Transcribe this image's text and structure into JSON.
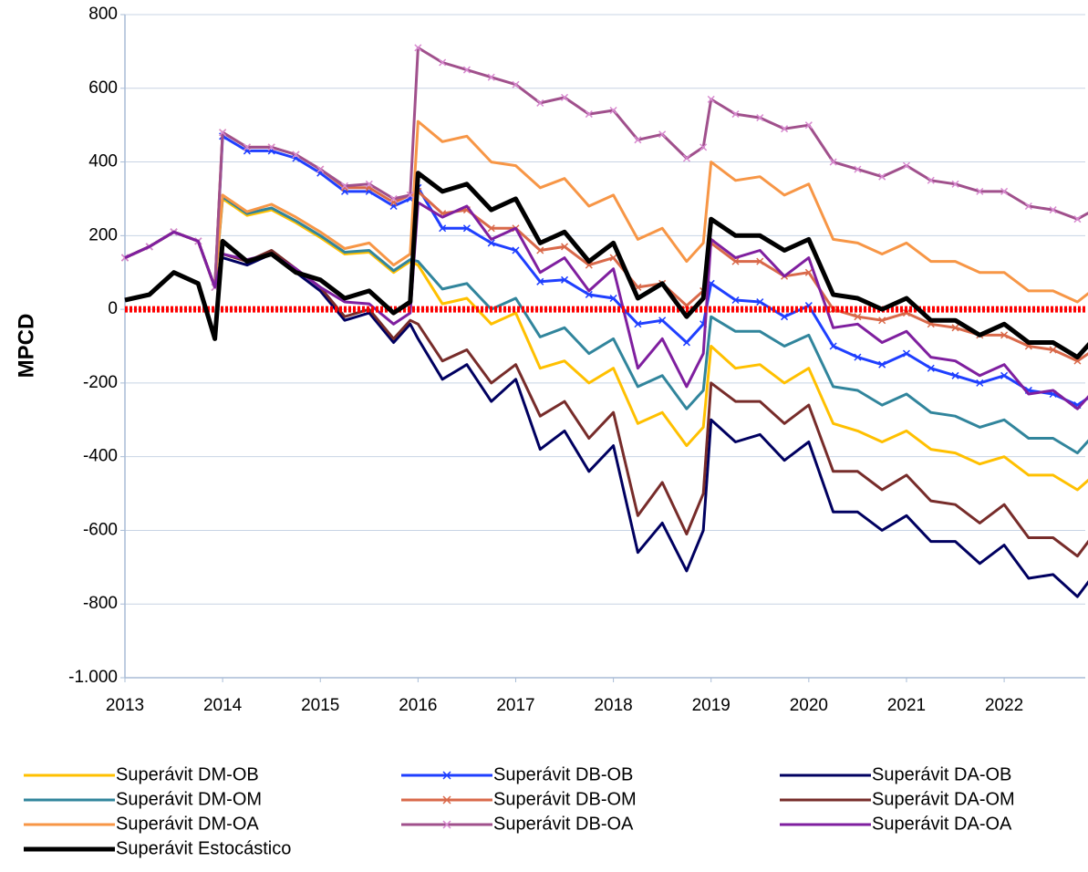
{
  "chart_data": {
    "type": "line",
    "y_label": "MPCD",
    "x": [
      2013,
      2013.25,
      2013.5,
      2013.75,
      2013.92,
      2014,
      2014.25,
      2014.5,
      2014.75,
      2015,
      2015.25,
      2015.5,
      2015.75,
      2015.92,
      2016,
      2016.25,
      2016.5,
      2016.75,
      2017,
      2017.25,
      2017.5,
      2017.75,
      2018,
      2018.25,
      2018.5,
      2018.75,
      2018.92,
      2019,
      2019.25,
      2019.5,
      2019.75,
      2020,
      2020.25,
      2020.5,
      2020.75,
      2021,
      2021.25,
      2021.5,
      2021.75,
      2022,
      2022.25,
      2022.5,
      2022.75,
      2022.92
    ],
    "xlim": [
      2013,
      2022.83
    ],
    "xticks": [
      2013,
      2014,
      2015,
      2016,
      2017,
      2018,
      2019,
      2020,
      2021,
      2022
    ],
    "ylim": [
      -1000,
      800
    ],
    "yticks": [
      {
        "value": -1000,
        "label": "-1.000"
      },
      -800,
      -600,
      -400,
      -200,
      0,
      200,
      400,
      600,
      800
    ],
    "grid": true,
    "legend": "bottom",
    "reference_line": {
      "value": 0,
      "color": "#ff0000"
    },
    "series": [
      {
        "name": "Superávit DM-OB",
        "color": "#ffc000",
        "values": [
          140,
          170,
          210,
          185,
          60,
          300,
          255,
          270,
          235,
          195,
          150,
          155,
          100,
          130,
          120,
          15,
          30,
          -40,
          -10,
          -160,
          -140,
          -200,
          -160,
          -310,
          -280,
          -370,
          -320,
          -100,
          -160,
          -150,
          -200,
          -160,
          -310,
          -330,
          -360,
          -330,
          -380,
          -390,
          -420,
          -400,
          -450,
          -450,
          -490,
          -450
        ]
      },
      {
        "name": "Superávit DB-OB",
        "color": "#1f3fff",
        "marker": "x",
        "values": [
          140,
          170,
          210,
          185,
          60,
          470,
          430,
          430,
          410,
          370,
          320,
          320,
          280,
          300,
          330,
          220,
          220,
          180,
          160,
          75,
          80,
          40,
          30,
          -40,
          -30,
          -90,
          -40,
          70,
          25,
          20,
          -20,
          10,
          -100,
          -130,
          -150,
          -120,
          -160,
          -180,
          -200,
          -180,
          -220,
          -230,
          -260,
          -230
        ]
      },
      {
        "name": "Superávit DA-OB",
        "color": "#000060",
        "values": [
          140,
          170,
          210,
          185,
          60,
          140,
          120,
          150,
          100,
          50,
          -30,
          -10,
          -90,
          -40,
          -80,
          -190,
          -150,
          -250,
          -190,
          -380,
          -330,
          -440,
          -370,
          -660,
          -580,
          -710,
          -600,
          -300,
          -360,
          -340,
          -410,
          -360,
          -550,
          -550,
          -600,
          -560,
          -630,
          -630,
          -690,
          -640,
          -730,
          -720,
          -780,
          -720
        ]
      },
      {
        "name": "Superávit DM-OM",
        "color": "#31859c",
        "values": [
          140,
          170,
          210,
          185,
          60,
          305,
          260,
          275,
          240,
          200,
          155,
          160,
          105,
          135,
          130,
          55,
          70,
          0,
          30,
          -75,
          -50,
          -120,
          -80,
          -210,
          -180,
          -270,
          -220,
          -20,
          -60,
          -60,
          -100,
          -70,
          -210,
          -220,
          -260,
          -230,
          -280,
          -290,
          -320,
          -300,
          -350,
          -350,
          -390,
          -340
        ]
      },
      {
        "name": "Superávit DB-OM",
        "color": "#d9694a",
        "marker": "x",
        "values": [
          140,
          170,
          210,
          185,
          60,
          480,
          440,
          440,
          420,
          380,
          330,
          330,
          290,
          310,
          320,
          260,
          270,
          220,
          220,
          160,
          170,
          120,
          140,
          60,
          70,
          10,
          50,
          180,
          130,
          130,
          90,
          100,
          0,
          -20,
          -30,
          -10,
          -40,
          -50,
          -70,
          -70,
          -100,
          -110,
          -140,
          -110
        ]
      },
      {
        "name": "Superávit DA-OM",
        "color": "#772c2a",
        "values": [
          140,
          170,
          210,
          185,
          60,
          150,
          130,
          160,
          110,
          60,
          -20,
          0,
          -80,
          -30,
          -40,
          -140,
          -110,
          -200,
          -150,
          -290,
          -250,
          -350,
          -280,
          -560,
          -470,
          -610,
          -500,
          -200,
          -250,
          -250,
          -310,
          -260,
          -440,
          -440,
          -490,
          -450,
          -520,
          -530,
          -580,
          -530,
          -620,
          -620,
          -670,
          -610
        ]
      },
      {
        "name": "Superávit DM-OA",
        "color": "#f79646",
        "values": [
          140,
          170,
          210,
          185,
          60,
          310,
          265,
          285,
          250,
          210,
          165,
          180,
          120,
          150,
          510,
          455,
          470,
          400,
          390,
          330,
          355,
          280,
          310,
          190,
          220,
          130,
          180,
          400,
          350,
          360,
          310,
          340,
          190,
          180,
          150,
          180,
          130,
          130,
          100,
          100,
          50,
          50,
          20,
          55
        ]
      },
      {
        "name": "Superávit DB-OA",
        "color": "#a0508c",
        "marker": "x",
        "values": [
          140,
          170,
          210,
          185,
          60,
          480,
          440,
          440,
          420,
          380,
          335,
          340,
          300,
          310,
          710,
          670,
          650,
          630,
          610,
          560,
          575,
          530,
          540,
          460,
          475,
          410,
          440,
          570,
          530,
          520,
          490,
          500,
          400,
          380,
          360,
          390,
          350,
          340,
          320,
          320,
          280,
          270,
          245,
          270
        ]
      },
      {
        "name": "Superávit DA-OA",
        "color": "#7f1f9f",
        "values": [
          140,
          170,
          210,
          185,
          60,
          150,
          135,
          150,
          110,
          60,
          20,
          15,
          -40,
          -10,
          290,
          250,
          280,
          190,
          220,
          100,
          140,
          50,
          110,
          -160,
          -80,
          -210,
          -120,
          190,
          140,
          160,
          90,
          140,
          -50,
          -40,
          -90,
          -60,
          -130,
          -140,
          -180,
          -150,
          -230,
          -220,
          -270,
          -220
        ]
      },
      {
        "name": "Superávit Estocástico",
        "color": "#000000",
        "width": 5,
        "values": [
          25,
          40,
          100,
          70,
          -80,
          185,
          130,
          150,
          100,
          80,
          30,
          50,
          -10,
          20,
          370,
          320,
          340,
          270,
          300,
          180,
          210,
          130,
          180,
          30,
          70,
          -20,
          30,
          245,
          200,
          200,
          160,
          190,
          40,
          30,
          0,
          30,
          -30,
          -30,
          -70,
          -40,
          -90,
          -90,
          -130,
          -80
        ]
      }
    ]
  }
}
